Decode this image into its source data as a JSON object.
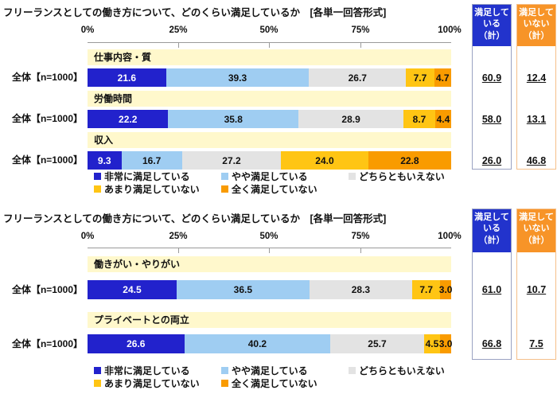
{
  "colors": {
    "segments": [
      "#2222CC",
      "#9FCDF2",
      "#E3E3E3",
      "#FFC514",
      "#F99B00"
    ],
    "category_band": "#FFF8CC",
    "satisfied_header_bg": "#2233CC",
    "unsatisfied_header_bg": "#F79428",
    "satisfied_border": "#9AA2C2",
    "unsatisfied_border": "#F5C08A"
  },
  "legend": {
    "items": [
      {
        "label": "非常に満足している",
        "color": "#2222CC"
      },
      {
        "label": "やや満足している",
        "color": "#9FCDF2"
      },
      {
        "label": "どちらともいえない",
        "color": "#E3E3E3"
      },
      {
        "label": "あまり満足していない",
        "color": "#FFC514"
      },
      {
        "label": "全く満足していない",
        "color": "#F99B00"
      }
    ]
  },
  "chart_data": [
    {
      "type": "stacked_bar_horizontal",
      "title": "フリーランスとしての働き方について、どのくらい満足しているか　[各単一回答形式]",
      "axis_ticks": [
        "0%",
        "25%",
        "50%",
        "75%",
        "100%"
      ],
      "xlim": [
        0,
        100
      ],
      "legend": [
        "非常に満足している",
        "やや満足している",
        "どちらともいえない",
        "あまり満足していない",
        "全く満足していない"
      ],
      "summary_columns": {
        "satisfied": "満足して\nいる\n（計）",
        "unsatisfied": "満足して\nいない\n（計）"
      },
      "rows": [
        {
          "category": "仕事内容・質",
          "group": "全体【n=1000】",
          "values": [
            21.6,
            39.3,
            26.7,
            7.7,
            4.7
          ],
          "labels": [
            "21.6",
            "39.3",
            "26.7",
            "7.7",
            "4.7"
          ],
          "satisfied_total": "60.9",
          "unsatisfied_total": "12.4"
        },
        {
          "category": "労働時間",
          "group": "全体【n=1000】",
          "values": [
            22.2,
            35.8,
            28.9,
            8.7,
            4.4
          ],
          "labels": [
            "22.2",
            "35.8",
            "28.9",
            "8.7",
            "4.4"
          ],
          "satisfied_total": "58.0",
          "unsatisfied_total": "13.1"
        },
        {
          "category": "収入",
          "group": "全体【n=1000】",
          "values": [
            9.3,
            16.7,
            27.2,
            24.0,
            22.8
          ],
          "labels": [
            "9.3",
            "16.7",
            "27.2",
            "24.0",
            "22.8"
          ],
          "satisfied_total": "26.0",
          "unsatisfied_total": "46.8"
        }
      ]
    },
    {
      "type": "stacked_bar_horizontal",
      "title": "フリーランスとしての働き方について、どのくらい満足しているか　[各単一回答形式]",
      "axis_ticks": [
        "0%",
        "25%",
        "50%",
        "75%",
        "100%"
      ],
      "xlim": [
        0,
        100
      ],
      "legend": [
        "非常に満足している",
        "やや満足している",
        "どちらともいえない",
        "あまり満足していない",
        "全く満足していない"
      ],
      "summary_columns": {
        "satisfied": "満足して\nいる\n（計）",
        "unsatisfied": "満足して\nいない\n（計）"
      },
      "rows": [
        {
          "category": "働きがい・やりがい",
          "group": "全体【n=1000】",
          "values": [
            24.5,
            36.5,
            28.3,
            7.7,
            3.0
          ],
          "labels": [
            "24.5",
            "36.5",
            "28.3",
            "7.7",
            "3.0"
          ],
          "satisfied_total": "61.0",
          "unsatisfied_total": "10.7"
        },
        {
          "category": "プライベートとの両立",
          "group": "全体【n=1000】",
          "values": [
            26.6,
            40.2,
            25.7,
            4.5,
            3.0
          ],
          "labels": [
            "26.6",
            "40.2",
            "25.7",
            "4.5",
            "3.0"
          ],
          "satisfied_total": "66.8",
          "unsatisfied_total": "7.5"
        }
      ]
    }
  ]
}
